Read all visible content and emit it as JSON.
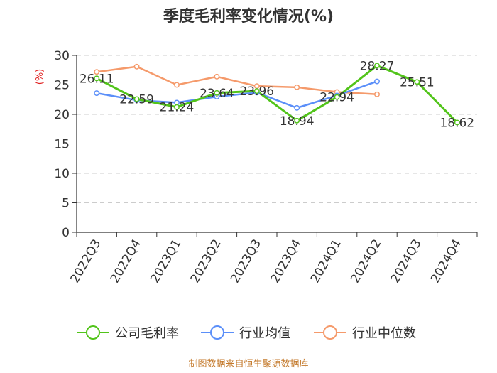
{
  "chart_data": {
    "type": "line",
    "title": "季度毛利率变化情况(%)",
    "ylabel": "(%)",
    "xlabel": "",
    "ylim": [
      0,
      30
    ],
    "yticks": [
      0,
      5,
      10,
      15,
      20,
      25,
      30
    ],
    "grid": true,
    "legend_position": "bottom",
    "categories": [
      "2022Q3",
      "2022Q4",
      "2023Q1",
      "2023Q2",
      "2023Q3",
      "2023Q4",
      "2024Q1",
      "2024Q2",
      "2024Q3",
      "2024Q4"
    ],
    "series": [
      {
        "name": "公司毛利率",
        "color": "#52c41a",
        "values": [
          26.11,
          22.59,
          21.24,
          23.64,
          23.96,
          18.94,
          22.94,
          28.27,
          25.51,
          18.62
        ],
        "labels": [
          "26.11",
          "22.59",
          "21.24",
          "23.64",
          "23.96",
          "18.94",
          "22.94",
          "28.27",
          "25.51",
          "18.62"
        ]
      },
      {
        "name": "行业均值",
        "color": "#5b8ff9",
        "values": [
          23.6,
          22.4,
          22.0,
          23.0,
          23.7,
          21.1,
          23.2,
          25.6,
          null,
          null
        ]
      },
      {
        "name": "行业中位数",
        "color": "#f59a6b",
        "values": [
          27.2,
          28.1,
          25.0,
          26.4,
          24.8,
          24.6,
          23.8,
          23.4,
          null,
          null
        ]
      }
    ]
  },
  "footer": {
    "source": "制图数据来自恒生聚源数据库"
  }
}
